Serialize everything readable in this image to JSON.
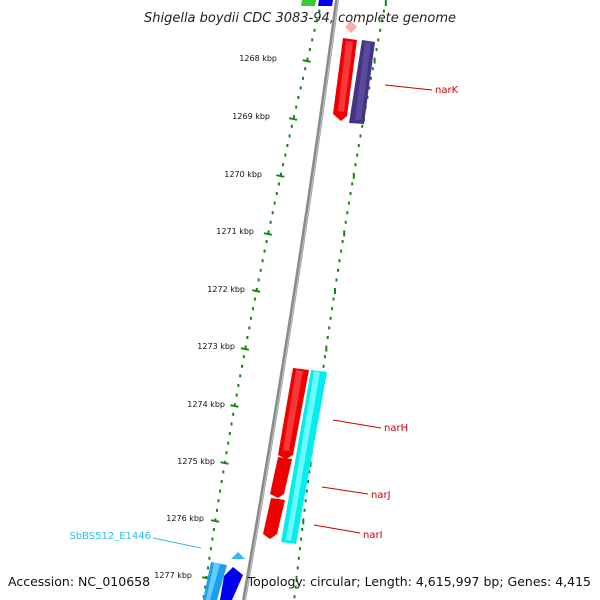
{
  "title": "Shigella boydii CDC 3083-94, complete genome",
  "footer": {
    "accession": "Accession: NC_010658",
    "summary": "Topology: circular; Length: 4,615,997 bp; Genes: 4,415"
  },
  "scale_labels": [
    "1268 kbp",
    "1269 kbp",
    "1270 kbp",
    "1271 kbp",
    "1272 kbp",
    "1273 kbp",
    "1274 kbp",
    "1275 kbp",
    "1276 kbp",
    "1277 kbp"
  ],
  "genes": [
    {
      "name": "narK",
      "color": "#cc0000"
    },
    {
      "name": "narH",
      "color": "#cc0000"
    },
    {
      "name": "narJ",
      "color": "#cc0000"
    },
    {
      "name": "narI",
      "color": "#cc0000"
    },
    {
      "name": "SbBS512_E1446",
      "color": "#33bbee"
    }
  ],
  "colors": {
    "backbone": "#888888",
    "scale_ticks": "#118811",
    "forward_gene": "#ee0000",
    "reverse_gene": "#443388",
    "cyan_gene": "#00eeee",
    "blue_gene": "#0000ee",
    "label_line_red": "#cc0000",
    "label_line_cyan": "#33bbee"
  }
}
